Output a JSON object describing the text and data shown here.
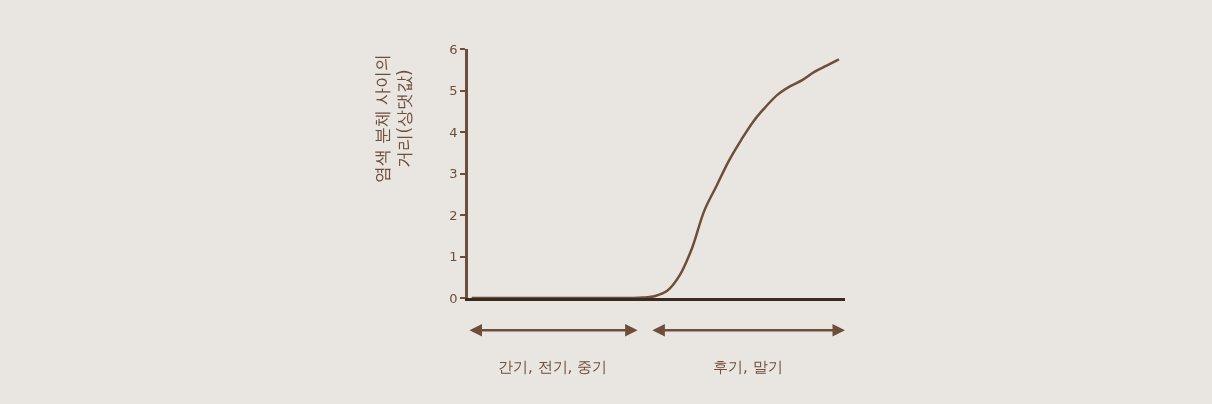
{
  "chart_data": {
    "type": "line",
    "ylabel": "염색 분체 사이의 거리(상댓값)",
    "categories": [
      null,
      null,
      null,
      null,
      null,
      null,
      null,
      null,
      null,
      null,
      null,
      null,
      null,
      null,
      null,
      null,
      null,
      null,
      null,
      null,
      null,
      null,
      null,
      null,
      null,
      null,
      null,
      null,
      null,
      null,
      null
    ],
    "series": [
      {
        "color": "#6e4e3a",
        "values": [
          0,
          0,
          0,
          0,
          0,
          0,
          0,
          0,
          0,
          0,
          0,
          0,
          0,
          0,
          0.01,
          0.05,
          0.18,
          0.55,
          1.2,
          2.1,
          2.7,
          3.3,
          3.8,
          4.25,
          4.6,
          4.9,
          5.1,
          5.25,
          5.45,
          5.6,
          5.75
        ]
      }
    ],
    "ylim": [
      0,
      6
    ],
    "yticks": [
      0,
      1,
      2,
      3,
      4,
      5,
      6
    ],
    "annotations": [
      "간기, 전기, 중기",
      "후기, 말기"
    ],
    "tick_labels": "y",
    "marker": "none",
    "line_style": "solid"
  }
}
